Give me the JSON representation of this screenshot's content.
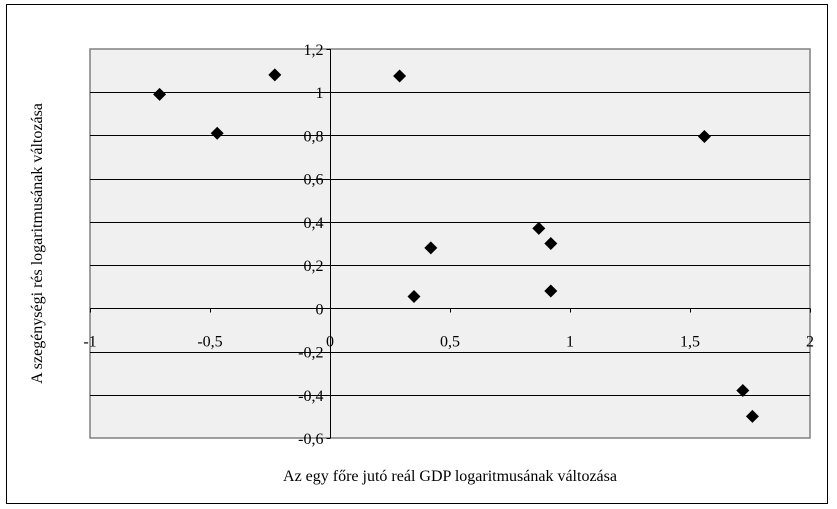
{
  "chart_data": {
    "type": "scatter",
    "title": "",
    "xlabel": "Az egy főre jutó reál GDP logaritmusának változása",
    "ylabel": "A szegénységi rés logaritmusának változása",
    "xlim": [
      -1,
      2
    ],
    "ylim": [
      -0.6,
      1.2
    ],
    "x_ticks": [
      -1,
      -0.5,
      0,
      0.5,
      1,
      1.5,
      2
    ],
    "x_tick_labels": [
      "-1",
      "-0,5",
      "0",
      "0,5",
      "1",
      "1,5",
      "2"
    ],
    "y_ticks": [
      1.2,
      1,
      0.8,
      0.6,
      0.4,
      0.2,
      0,
      -0.2,
      -0.4,
      -0.6
    ],
    "y_tick_labels": [
      "1,2",
      "1",
      "0,8",
      "0,6",
      "0,4",
      "0,2",
      "0",
      "-0,2",
      "-0,4",
      "-0,6"
    ],
    "grid": "horizontal",
    "legend": "none",
    "marker": "diamond",
    "colors": {
      "plot_background": "#f0f0f0",
      "marker": "#000000",
      "gridline": "#000000",
      "plot_border": "#808080"
    },
    "series": [
      {
        "points": [
          {
            "x": -0.71,
            "y": 0.99
          },
          {
            "x": -0.47,
            "y": 0.81
          },
          {
            "x": -0.23,
            "y": 1.08
          },
          {
            "x": 0.29,
            "y": 1.075
          },
          {
            "x": 0.35,
            "y": 0.055
          },
          {
            "x": 0.42,
            "y": 0.28
          },
          {
            "x": 0.87,
            "y": 0.37
          },
          {
            "x": 0.92,
            "y": 0.3
          },
          {
            "x": 0.92,
            "y": 0.08
          },
          {
            "x": 1.56,
            "y": 0.795
          },
          {
            "x": 1.72,
            "y": -0.38
          },
          {
            "x": 1.76,
            "y": -0.5
          }
        ]
      }
    ]
  }
}
